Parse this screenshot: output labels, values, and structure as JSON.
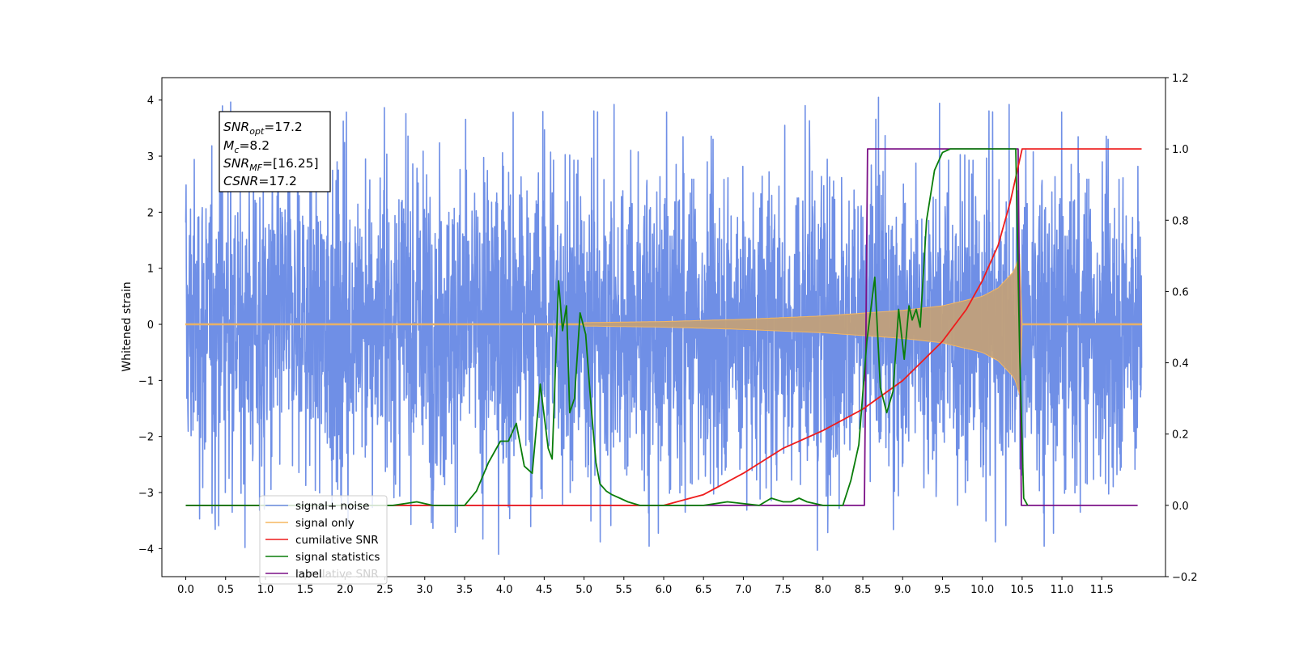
{
  "chart_data": {
    "type": "line",
    "ylabel": "Whitened strain",
    "x_ticks": [
      "0.0",
      "0.5",
      "1.0",
      "1.5",
      "2.0",
      "2.5",
      "3.0",
      "3.5",
      "4.0",
      "4.5",
      "5.0",
      "5.5",
      "6.0",
      "6.5",
      "7.0",
      "7.5",
      "8.0",
      "8.5",
      "9.0",
      "9.5",
      "10.0",
      "10.5",
      "11.0",
      "11.5"
    ],
    "xlim": [
      -0.3,
      12.3
    ],
    "left_axis": {
      "ylim": [
        -4.5,
        4.4
      ],
      "ticks": [
        "4",
        "3",
        "2",
        "1",
        "0",
        "−1",
        "−2",
        "−3",
        "−4"
      ]
    },
    "right_axis": {
      "ylim": [
        -0.2,
        1.2
      ],
      "ticks": [
        "1.2",
        "1.0",
        "0.8",
        "0.6",
        "0.4",
        "0.2",
        "0.0",
        "−0.2"
      ]
    },
    "annotation": {
      "snr_opt": {
        "main": "SNR",
        "sub": "opt",
        "value": "=17.2"
      },
      "mc": {
        "main": "M",
        "sub": "c",
        "value": "=8.2"
      },
      "snr_mf": {
        "main": "SNR",
        "sub": "MF",
        "value": "=[16.25]"
      },
      "csnr": {
        "main": "CSNR",
        "value": "=17.2"
      }
    },
    "legend": {
      "placement": "lower-left",
      "entries": [
        "signal+ noise",
        "signal only",
        "cumilative SNR",
        "signal statistics",
        "label"
      ],
      "ghost_text": "cumilative SNR"
    },
    "series": [
      {
        "name": "signal+ noise",
        "axis": "left",
        "color": "#6f8fe6",
        "x_range": [
          0.0,
          12.0
        ],
        "amplitude_typical": 2.2,
        "amplitude_peak": 4.0
      },
      {
        "name": "signal only",
        "axis": "left",
        "color": "#f5b760",
        "x_range": [
          0.0,
          12.0
        ],
        "envelope_x": [
          5.0,
          6.0,
          7.0,
          8.0,
          9.0,
          9.5,
          10.0,
          10.2,
          10.4,
          10.48,
          10.5
        ],
        "envelope_y": [
          0.03,
          0.05,
          0.09,
          0.15,
          0.25,
          0.33,
          0.5,
          0.65,
          0.95,
          1.3,
          0.0
        ]
      },
      {
        "name": "cumilative SNR",
        "axis": "right",
        "color": "#ee1c1c",
        "x": [
          0.0,
          6.0,
          6.5,
          7.0,
          7.5,
          8.0,
          8.5,
          9.0,
          9.5,
          9.8,
          10.0,
          10.2,
          10.35,
          10.45,
          10.5,
          12.0
        ],
        "y": [
          0.0,
          0.0,
          0.03,
          0.09,
          0.16,
          0.21,
          0.27,
          0.35,
          0.46,
          0.55,
          0.63,
          0.73,
          0.85,
          0.95,
          1.0,
          1.0
        ]
      },
      {
        "name": "signal statistics",
        "axis": "right",
        "color": "#0a7d0a",
        "x": [
          0.0,
          2.6,
          2.9,
          3.1,
          3.5,
          3.65,
          3.8,
          3.95,
          4.05,
          4.15,
          4.25,
          4.35,
          4.45,
          4.55,
          4.6,
          4.68,
          4.73,
          4.78,
          4.82,
          4.88,
          4.95,
          5.02,
          5.08,
          5.15,
          5.2,
          5.28,
          5.35,
          5.45,
          5.55,
          5.7,
          6.0,
          6.5,
          6.8,
          7.2,
          7.35,
          7.5,
          7.6,
          7.7,
          7.8,
          8.0,
          8.25,
          8.35,
          8.45,
          8.55,
          8.65,
          8.72,
          8.8,
          8.88,
          8.95,
          9.02,
          9.08,
          9.12,
          9.17,
          9.22,
          9.3,
          9.4,
          9.5,
          9.6,
          9.7,
          10.0,
          10.3,
          10.42,
          10.47,
          10.52,
          10.57
        ],
        "y": [
          0.0,
          0.0,
          0.01,
          0.0,
          0.0,
          0.04,
          0.12,
          0.18,
          0.18,
          0.23,
          0.11,
          0.09,
          0.34,
          0.16,
          0.13,
          0.63,
          0.49,
          0.56,
          0.26,
          0.3,
          0.54,
          0.48,
          0.3,
          0.12,
          0.06,
          0.04,
          0.03,
          0.02,
          0.01,
          0.0,
          0.0,
          0.0,
          0.01,
          0.0,
          0.02,
          0.01,
          0.01,
          0.02,
          0.01,
          0.0,
          0.0,
          0.07,
          0.17,
          0.46,
          0.64,
          0.33,
          0.26,
          0.32,
          0.55,
          0.41,
          0.56,
          0.52,
          0.55,
          0.5,
          0.8,
          0.94,
          0.99,
          1.0,
          1.0,
          1.0,
          1.0,
          1.0,
          0.42,
          0.02,
          0.0
        ]
      },
      {
        "name": "label",
        "axis": "right",
        "color": "#7c1187",
        "x": [
          0.0,
          8.52,
          8.56,
          10.45,
          10.49,
          11.95
        ],
        "y": [
          0.0,
          0.0,
          1.0,
          1.0,
          0.0,
          0.0
        ]
      }
    ],
    "colors": {
      "noise": "#6f8fe6",
      "signal": "#f5b760",
      "signal_fill": "#c1a07a",
      "csnr": "#ee1c1c",
      "stat": "#0a7d0a",
      "label": "#7c1187"
    }
  }
}
